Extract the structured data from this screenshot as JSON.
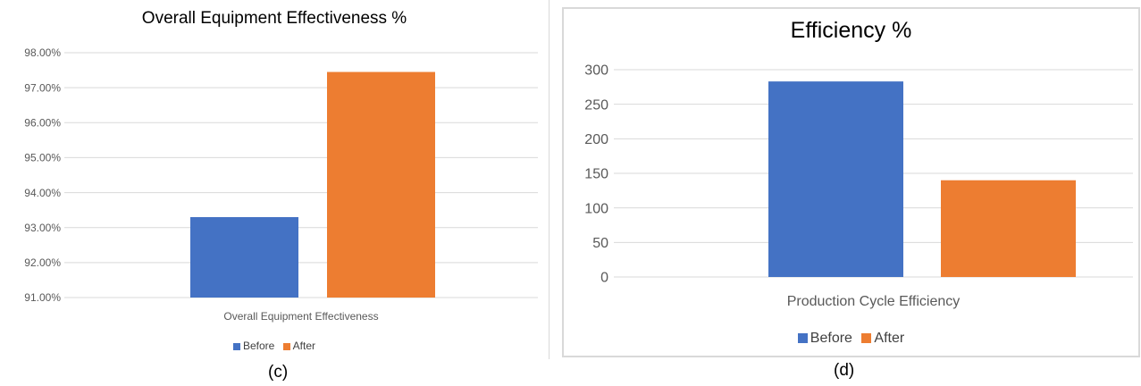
{
  "charts": [
    {
      "id": "c",
      "type": "bar",
      "title": "Overall Equipment Effectiveness %",
      "categories": [
        "Overall Equipment Effectiveness"
      ],
      "series": [
        {
          "name": "Before",
          "color": "#4472C4",
          "values": [
            0.933
          ]
        },
        {
          "name": "After",
          "color": "#ED7D31",
          "values": [
            0.9745
          ]
        }
      ],
      "yticks": [
        "91.00%",
        "92.00%",
        "93.00%",
        "94.00%",
        "95.00%",
        "96.00%",
        "97.00%",
        "98.00%"
      ],
      "ylim": [
        0.91,
        0.98
      ],
      "caption": "(c)"
    },
    {
      "id": "d",
      "type": "bar",
      "title": "Efficiency %",
      "categories": [
        "Production Cycle Efficiency"
      ],
      "series": [
        {
          "name": "Before",
          "color": "#4472C4",
          "values": [
            283
          ]
        },
        {
          "name": "After",
          "color": "#ED7D31",
          "values": [
            140
          ]
        }
      ],
      "yticks": [
        "0",
        "50",
        "100",
        "150",
        "200",
        "250",
        "300"
      ],
      "ylim": [
        0,
        300
      ],
      "caption": "(d)"
    }
  ],
  "chart_data": [
    {
      "type": "bar",
      "title": "Overall Equipment Effectiveness %",
      "categories": [
        "Overall Equipment Effectiveness"
      ],
      "series": [
        {
          "name": "Before",
          "values": [
            93.3
          ]
        },
        {
          "name": "After",
          "values": [
            97.45
          ]
        }
      ],
      "xlabel": "",
      "ylabel": "",
      "ylim": [
        91,
        98
      ],
      "grid": true,
      "legend": "bottom"
    },
    {
      "type": "bar",
      "title": "Efficiency %",
      "categories": [
        "Production Cycle Efficiency"
      ],
      "series": [
        {
          "name": "Before",
          "values": [
            283
          ]
        },
        {
          "name": "After",
          "values": [
            140
          ]
        }
      ],
      "xlabel": "",
      "ylabel": "",
      "ylim": [
        0,
        300
      ],
      "grid": true,
      "legend": "bottom"
    }
  ]
}
